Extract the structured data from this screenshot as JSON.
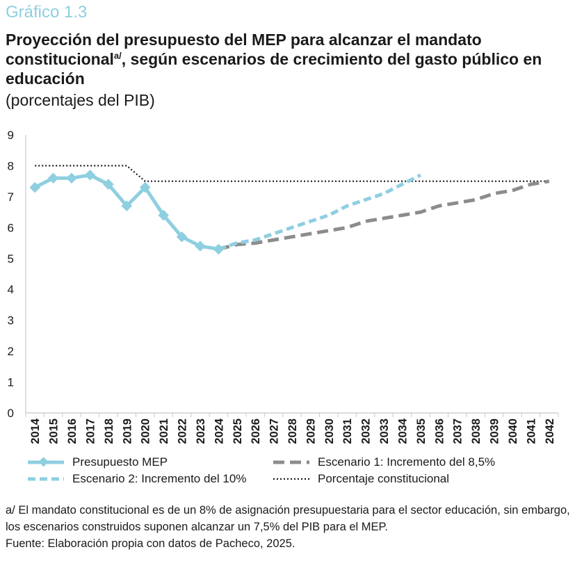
{
  "header": {
    "kicker": "Gráfico 1.3",
    "title_part1": "Proyección del presupuesto del MEP para alcanzar el mandato constitucional",
    "title_sup": "a/",
    "title_part2": ", según escenarios de crecimiento del gasto público en educación",
    "subtitle": "(porcentajes del PIB)"
  },
  "colors": {
    "mep": "#8ecfe0",
    "escenario1": "#8c8c8c",
    "escenario2": "#8ecfe0",
    "constitucional": "#1a1a1a",
    "axis": "#c8c8c8",
    "kicker": "#8ecfe0"
  },
  "chart_data": {
    "type": "line",
    "x": [
      "2014",
      "2015",
      "2016",
      "2017",
      "2018",
      "2019",
      "2020",
      "2021",
      "2022",
      "2023",
      "2024",
      "2025",
      "2026",
      "2027",
      "2028",
      "2029",
      "2030",
      "2031",
      "2032",
      "2033",
      "2034",
      "2035",
      "2036",
      "2037",
      "2038",
      "2039",
      "2040",
      "2041",
      "2042"
    ],
    "ylim": [
      0,
      9
    ],
    "yticks": [
      "0",
      "1",
      "2",
      "3",
      "4",
      "5",
      "6",
      "7",
      "8",
      "9"
    ],
    "grid": false,
    "legend_position": "bottom",
    "series": [
      {
        "name": "Presupuesto MEP",
        "style": "solid-markers",
        "values": [
          7.3,
          7.6,
          7.6,
          7.7,
          7.4,
          6.7,
          7.3,
          6.4,
          5.7,
          5.4,
          5.3,
          null,
          null,
          null,
          null,
          null,
          null,
          null,
          null,
          null,
          null,
          null,
          null,
          null,
          null,
          null,
          null,
          null,
          null
        ]
      },
      {
        "name": "Escenario 1: Incremento del 8,5%",
        "style": "dashed-gray",
        "values": [
          null,
          null,
          null,
          null,
          null,
          null,
          null,
          null,
          null,
          null,
          5.3,
          5.45,
          5.5,
          5.6,
          5.7,
          5.8,
          5.9,
          6.0,
          6.2,
          6.3,
          6.4,
          6.5,
          6.7,
          6.8,
          6.9,
          7.1,
          7.2,
          7.4,
          7.5
        ]
      },
      {
        "name": "Escenario 2: Incremento del 10%",
        "style": "dashed-light",
        "values": [
          null,
          null,
          null,
          null,
          null,
          null,
          null,
          null,
          null,
          null,
          5.3,
          5.5,
          5.6,
          5.8,
          6.0,
          6.2,
          6.4,
          6.7,
          6.9,
          7.1,
          7.4,
          7.7,
          null,
          null,
          null,
          null,
          null,
          null,
          null
        ]
      },
      {
        "name": "Porcentaje constitucional",
        "style": "dotted",
        "values": [
          8,
          8,
          8,
          8,
          8,
          8,
          7.5,
          7.5,
          7.5,
          7.5,
          7.5,
          7.5,
          7.5,
          7.5,
          7.5,
          7.5,
          7.5,
          7.5,
          7.5,
          7.5,
          7.5,
          7.5,
          7.5,
          7.5,
          7.5,
          7.5,
          7.5,
          7.5,
          7.5
        ]
      }
    ]
  },
  "legend": {
    "mep": "Presupuesto MEP",
    "esc1": "Escenario 1: Incremento del 8,5%",
    "esc2": "Escenario 2: Incremento del 10%",
    "const": "Porcentaje constitucional"
  },
  "notes": {
    "footnote": "a/ El mandato constitucional es de un 8% de asignación presupuestaria para el sector educación, sin embargo, los escenarios construidos suponen alcanzar un 7,5% del PIB para el MEP.",
    "source": "Fuente: Elaboración propia con datos de Pacheco, 2025."
  }
}
